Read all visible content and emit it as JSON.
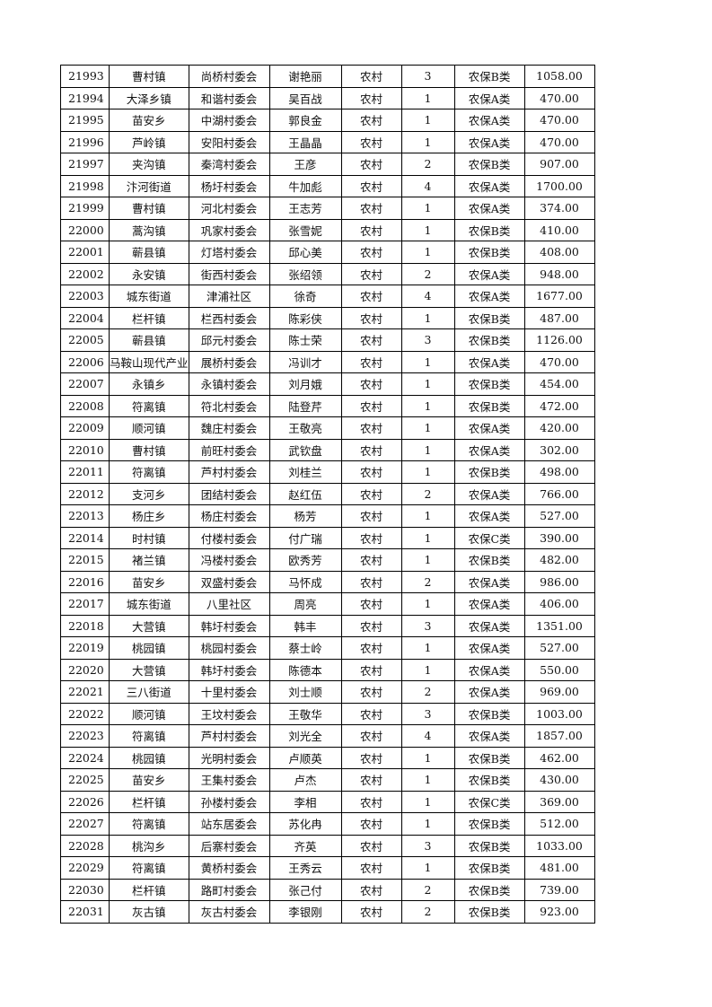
{
  "rows": [
    [
      "21993",
      "曹村镇",
      "尚桥村委会",
      "谢艳丽",
      "农村",
      "3",
      "农保B类",
      "1058.00"
    ],
    [
      "21994",
      "大泽乡镇",
      "和谐村委会",
      "吴百战",
      "农村",
      "1",
      "农保A类",
      "470.00"
    ],
    [
      "21995",
      "苗安乡",
      "中湖村委会",
      "郭良金",
      "农村",
      "1",
      "农保A类",
      "470.00"
    ],
    [
      "21996",
      "芦岭镇",
      "安阳村委会",
      "王晶晶",
      "农村",
      "1",
      "农保A类",
      "470.00"
    ],
    [
      "21997",
      "夹沟镇",
      "秦湾村委会",
      "王彦",
      "农村",
      "2",
      "农保B类",
      "907.00"
    ],
    [
      "21998",
      "汴河街道",
      "杨圩村委会",
      "牛加彪",
      "农村",
      "4",
      "农保A类",
      "1700.00"
    ],
    [
      "21999",
      "曹村镇",
      "河北村委会",
      "王志芳",
      "农村",
      "1",
      "农保A类",
      "374.00"
    ],
    [
      "22000",
      "蒿沟镇",
      "巩家村委会",
      "张雪妮",
      "农村",
      "1",
      "农保B类",
      "410.00"
    ],
    [
      "22001",
      "蕲县镇",
      "灯塔村委会",
      "邱心美",
      "农村",
      "1",
      "农保B类",
      "408.00"
    ],
    [
      "22002",
      "永安镇",
      "街西村委会",
      "张绍领",
      "农村",
      "2",
      "农保A类",
      "948.00"
    ],
    [
      "22003",
      "城东街道",
      "津浦社区",
      "徐奇",
      "农村",
      "4",
      "农保A类",
      "1677.00"
    ],
    [
      "22004",
      "栏杆镇",
      "栏西村委会",
      "陈彩侠",
      "农村",
      "1",
      "农保B类",
      "487.00"
    ],
    [
      "22005",
      "蕲县镇",
      "邱元村委会",
      "陈士荣",
      "农村",
      "3",
      "农保B类",
      "1126.00"
    ],
    [
      "22006",
      "马鞍山现代产业",
      "展桥村委会",
      "冯训才",
      "农村",
      "1",
      "农保A类",
      "470.00"
    ],
    [
      "22007",
      "永镇乡",
      "永镇村委会",
      "刘月娥",
      "农村",
      "1",
      "农保B类",
      "454.00"
    ],
    [
      "22008",
      "符离镇",
      "符北村委会",
      "陆登芹",
      "农村",
      "1",
      "农保B类",
      "472.00"
    ],
    [
      "22009",
      "顺河镇",
      "魏庄村委会",
      "王敬亮",
      "农村",
      "1",
      "农保A类",
      "420.00"
    ],
    [
      "22010",
      "曹村镇",
      "前旺村委会",
      "武钦盘",
      "农村",
      "1",
      "农保A类",
      "302.00"
    ],
    [
      "22011",
      "符离镇",
      "芦村村委会",
      "刘桂兰",
      "农村",
      "1",
      "农保B类",
      "498.00"
    ],
    [
      "22012",
      "支河乡",
      "团结村委会",
      "赵红伍",
      "农村",
      "2",
      "农保A类",
      "766.00"
    ],
    [
      "22013",
      "杨庄乡",
      "杨庄村委会",
      "杨芳",
      "农村",
      "1",
      "农保A类",
      "527.00"
    ],
    [
      "22014",
      "时村镇",
      "付楼村委会",
      "付广瑞",
      "农村",
      "1",
      "农保C类",
      "390.00"
    ],
    [
      "22015",
      "褚兰镇",
      "冯楼村委会",
      "欧秀芳",
      "农村",
      "1",
      "农保B类",
      "482.00"
    ],
    [
      "22016",
      "苗安乡",
      "双盛村委会",
      "马怀成",
      "农村",
      "2",
      "农保A类",
      "986.00"
    ],
    [
      "22017",
      "城东街道",
      "八里社区",
      "周亮",
      "农村",
      "1",
      "农保A类",
      "406.00"
    ],
    [
      "22018",
      "大营镇",
      "韩圩村委会",
      "韩丰",
      "农村",
      "3",
      "农保A类",
      "1351.00"
    ],
    [
      "22019",
      "桃园镇",
      "桃园村委会",
      "蔡士岭",
      "农村",
      "1",
      "农保A类",
      "527.00"
    ],
    [
      "22020",
      "大营镇",
      "韩圩村委会",
      "陈德本",
      "农村",
      "1",
      "农保A类",
      "550.00"
    ],
    [
      "22021",
      "三八街道",
      "十里村委会",
      "刘士顺",
      "农村",
      "2",
      "农保A类",
      "969.00"
    ],
    [
      "22022",
      "顺河镇",
      "王坟村委会",
      "王敬华",
      "农村",
      "3",
      "农保B类",
      "1003.00"
    ],
    [
      "22023",
      "符离镇",
      "芦村村委会",
      "刘光全",
      "农村",
      "4",
      "农保A类",
      "1857.00"
    ],
    [
      "22024",
      "桃园镇",
      "光明村委会",
      "卢顺英",
      "农村",
      "1",
      "农保B类",
      "462.00"
    ],
    [
      "22025",
      "苗安乡",
      "王集村委会",
      "卢杰",
      "农村",
      "1",
      "农保B类",
      "430.00"
    ],
    [
      "22026",
      "栏杆镇",
      "孙楼村委会",
      "李相",
      "农村",
      "1",
      "农保C类",
      "369.00"
    ],
    [
      "22027",
      "符离镇",
      "站东居委会",
      "苏化冉",
      "农村",
      "1",
      "农保B类",
      "512.00"
    ],
    [
      "22028",
      "桃沟乡",
      "后寨村委会",
      "齐英",
      "农村",
      "3",
      "农保B类",
      "1033.00"
    ],
    [
      "22029",
      "符离镇",
      "黄桥村委会",
      "王秀云",
      "农村",
      "1",
      "农保B类",
      "481.00"
    ],
    [
      "22030",
      "栏杆镇",
      "路町村委会",
      "张己付",
      "农村",
      "2",
      "农保B类",
      "739.00"
    ],
    [
      "22031",
      "灰古镇",
      "灰古村委会",
      "李银刚",
      "农村",
      "2",
      "农保B类",
      "923.00"
    ]
  ]
}
